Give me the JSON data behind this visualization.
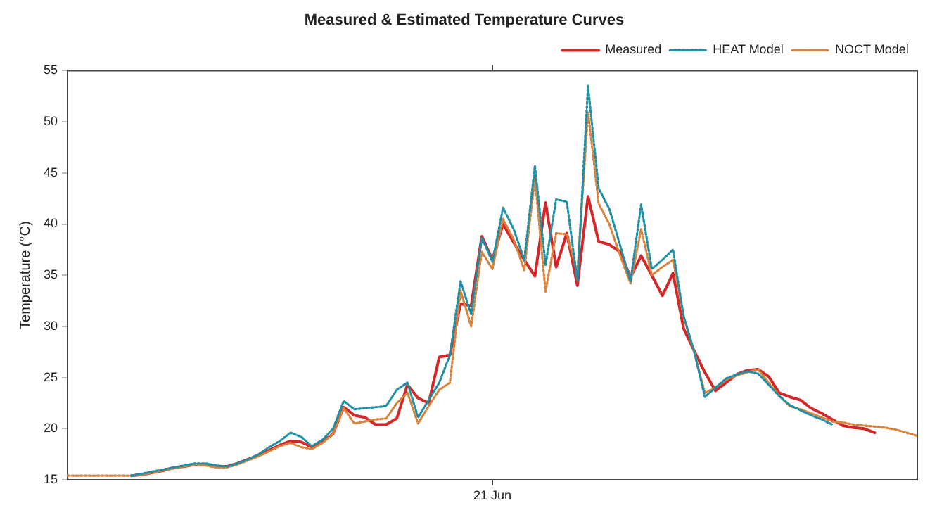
{
  "chart_data": {
    "type": "line",
    "title": "Measured & Estimated Temperature Curves",
    "ylabel": "Temperature (°C)",
    "annotations": [
      "21 Jun"
    ],
    "categories": [
      null,
      null,
      null,
      null,
      null,
      null,
      null,
      null,
      null,
      null,
      null,
      null,
      null,
      null,
      null,
      null,
      null,
      null,
      null,
      null,
      null,
      null,
      null,
      null,
      null,
      null,
      null,
      null,
      null,
      null,
      null,
      null,
      null,
      null,
      null,
      null,
      null,
      null,
      null,
      null,
      null,
      null,
      null,
      null,
      null,
      null,
      null,
      null,
      null,
      null,
      null,
      null,
      null,
      null,
      null,
      null,
      null,
      null,
      null,
      null,
      null,
      null,
      null,
      null,
      null,
      null,
      null,
      null,
      null,
      null,
      null,
      null,
      null,
      null,
      null,
      null,
      null,
      null,
      null,
      null,
      null
    ],
    "ylim": [
      15,
      55
    ],
    "yticks": [
      15,
      20,
      25,
      30,
      35,
      40,
      45,
      50,
      55
    ],
    "grid": false,
    "legend": "top right",
    "marker": "none",
    "series": [
      {
        "name": "Measured",
        "color": "#d62728",
        "line_style": "solid",
        "values": [
          null,
          null,
          null,
          null,
          null,
          null,
          15.4,
          15.5,
          15.7,
          15.9,
          16.2,
          16.3,
          16.5,
          16.5,
          16.3,
          16.3,
          16.6,
          17.0,
          17.4,
          17.9,
          18.4,
          18.8,
          18.7,
          18.2,
          18.7,
          19.5,
          22.1,
          21.3,
          21.1,
          20.4,
          20.4,
          21.0,
          24.3,
          23.0,
          22.5,
          27.0,
          27.2,
          32.2,
          32.0,
          38.8,
          36.5,
          40.0,
          38.2,
          36.5,
          34.9,
          42.1,
          35.8,
          39.1,
          34.0,
          42.7,
          38.3,
          38.0,
          37.3,
          34.8,
          36.9,
          35.0,
          33.0,
          35.2,
          29.8,
          27.6,
          25.5,
          23.7,
          24.5,
          25.3,
          25.7,
          25.8,
          25.1,
          23.5,
          23.1,
          22.8,
          22.0,
          21.5,
          20.9,
          20.3,
          20.1,
          20.0,
          19.6,
          null,
          null,
          null,
          null
        ]
      },
      {
        "name": "HEAT Model",
        "color": "#1f8fa6",
        "line_style": "dotted",
        "values": [
          null,
          null,
          null,
          null,
          null,
          null,
          15.4,
          15.6,
          15.8,
          16.0,
          16.2,
          16.4,
          16.6,
          16.6,
          16.4,
          16.3,
          16.6,
          17.0,
          17.5,
          18.2,
          18.8,
          19.6,
          19.2,
          18.3,
          18.9,
          20.0,
          22.7,
          21.9,
          22.0,
          22.1,
          22.2,
          23.8,
          24.5,
          21.1,
          22.8,
          24.5,
          27.2,
          34.4,
          31.2,
          38.7,
          36.3,
          41.6,
          39.5,
          36.5,
          45.7,
          36.0,
          42.4,
          42.2,
          34.4,
          53.5,
          43.5,
          41.5,
          38.0,
          34.4,
          41.9,
          35.6,
          36.5,
          37.5,
          31.0,
          27.5,
          23.1,
          24.0,
          24.9,
          25.3,
          25.6,
          25.4,
          24.3,
          23.2,
          22.3,
          21.8,
          21.3,
          20.9,
          20.4,
          null,
          null,
          null,
          null,
          null,
          null,
          null,
          null
        ]
      },
      {
        "name": "NOCT Model",
        "color": "#d9823b",
        "line_style": "dotted",
        "values": [
          15.4,
          15.4,
          15.4,
          15.4,
          15.4,
          15.4,
          15.4,
          15.5,
          15.7,
          15.9,
          16.1,
          16.3,
          16.5,
          16.4,
          16.2,
          16.2,
          16.5,
          16.9,
          17.3,
          17.8,
          18.3,
          18.6,
          18.2,
          18.0,
          18.6,
          19.5,
          22.0,
          20.5,
          20.7,
          20.9,
          21.0,
          22.5,
          23.5,
          20.5,
          22.2,
          23.8,
          24.5,
          33.5,
          30.0,
          37.3,
          35.6,
          40.5,
          38.5,
          35.5,
          44.5,
          33.4,
          39.1,
          39.0,
          35.2,
          51.0,
          42.0,
          40.0,
          37.0,
          34.2,
          39.5,
          35.0,
          35.8,
          36.5,
          31.0,
          27.5,
          23.5,
          24.0,
          24.8,
          25.2,
          25.5,
          25.8,
          24.5,
          23.2,
          22.2,
          21.9,
          21.5,
          21.1,
          20.7,
          20.6,
          20.4,
          20.3,
          20.2,
          20.1,
          19.9,
          19.6,
          19.3
        ]
      }
    ]
  }
}
